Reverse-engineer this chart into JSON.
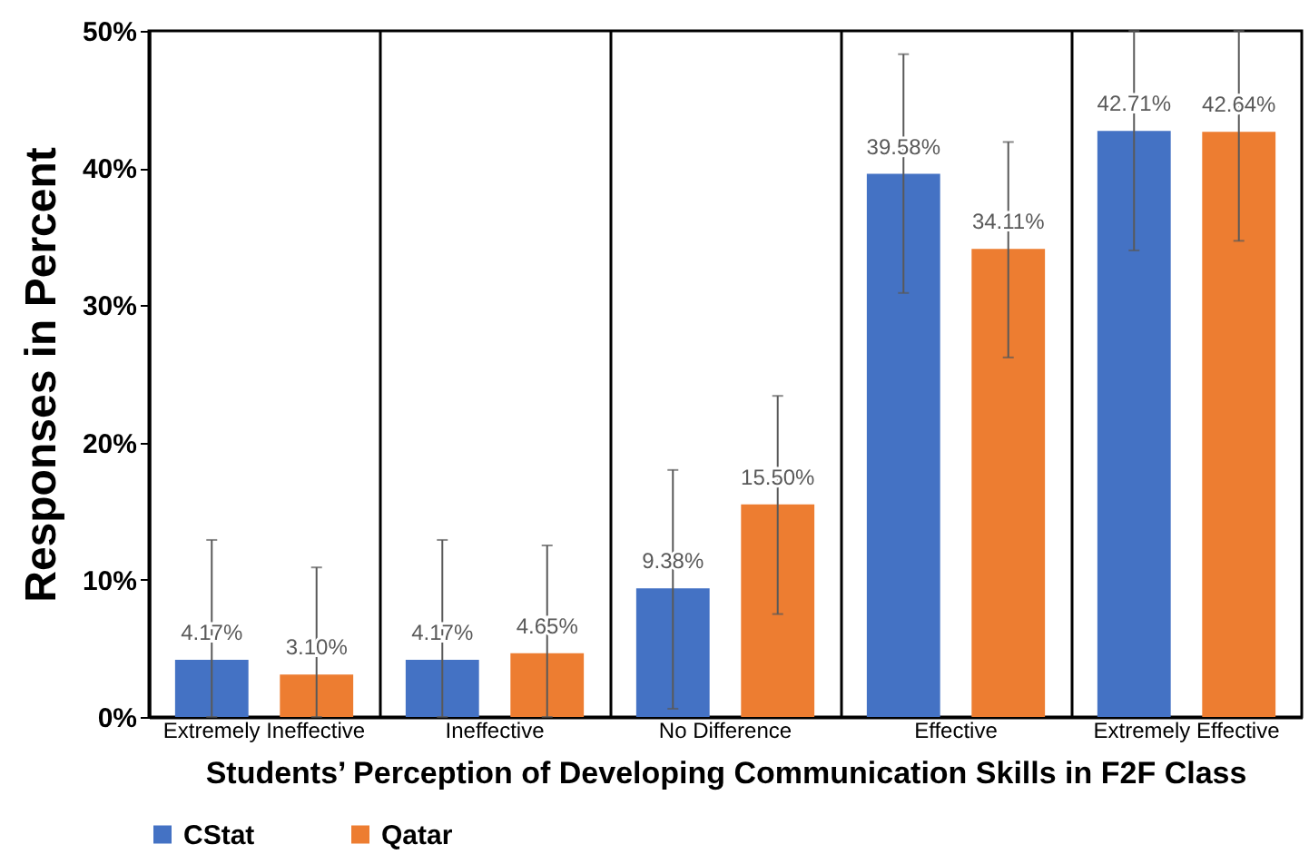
{
  "chart_data": {
    "type": "bar",
    "xlabel": "Students’ Perception of Developing Communication Skills in F2F Class",
    "ylabel": "Responses in Percent",
    "categories": [
      "Extremely Ineffective",
      "Ineffective",
      "No Difference",
      "Effective",
      "Extremely Effective"
    ],
    "series": [
      {
        "name": "CStat",
        "color": "#4472c4",
        "values": [
          4.17,
          4.17,
          9.38,
          39.58,
          42.71
        ],
        "value_labels": [
          "4.17%",
          "4.17%",
          "9.38%",
          "39.58%",
          "42.71%"
        ],
        "errors": [
          [
            0,
            12.9
          ],
          [
            0,
            12.9
          ],
          [
            0.6,
            18.0
          ],
          [
            30.9,
            48.3
          ],
          [
            34.0,
            50
          ]
        ]
      },
      {
        "name": "Qatar",
        "color": "#ed7d31",
        "values": [
          3.1,
          4.65,
          15.5,
          34.11,
          42.64
        ],
        "value_labels": [
          "3.10%",
          "4.65%",
          "15.50%",
          "34.11%",
          "42.64%"
        ],
        "errors": [
          [
            0,
            10.9
          ],
          [
            0,
            12.5
          ],
          [
            7.5,
            23.4
          ],
          [
            26.2,
            41.9
          ],
          [
            34.7,
            50
          ]
        ]
      }
    ],
    "ylim": [
      0,
      50
    ],
    "yticks": [
      {
        "value": 0,
        "label": "0%"
      },
      {
        "value": 10,
        "label": "10%"
      },
      {
        "value": 20,
        "label": "20%"
      },
      {
        "value": 30,
        "label": "30%"
      },
      {
        "value": 40,
        "label": "40%"
      },
      {
        "value": 50,
        "label": "50%"
      }
    ],
    "grid": "x",
    "legend": "bottom"
  }
}
